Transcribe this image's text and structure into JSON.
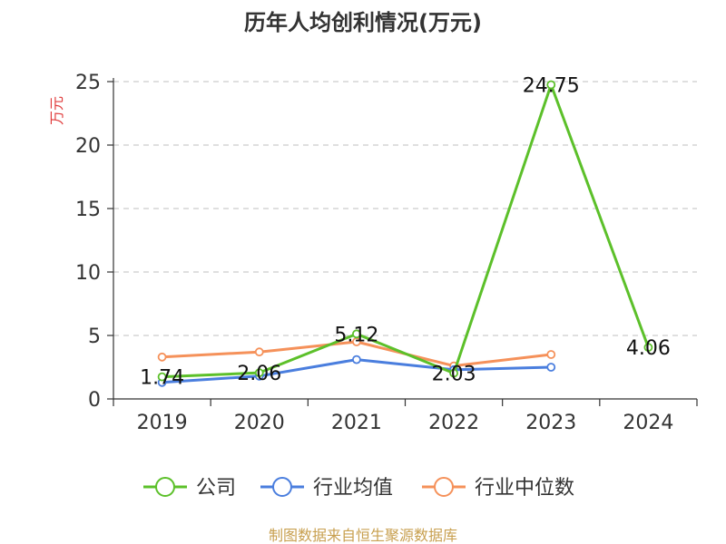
{
  "chart_data": {
    "type": "line",
    "title": "历年人均创利情况(万元)",
    "ylabel": "万元",
    "categories": [
      "2019",
      "2020",
      "2021",
      "2022",
      "2023",
      "2024"
    ],
    "ylim": [
      0,
      25
    ],
    "yticks": [
      0,
      5,
      10,
      15,
      20,
      25
    ],
    "grid": true,
    "legend_position": "bottom",
    "series": [
      {
        "name": "公司",
        "color": "#5cc02a",
        "values": [
          1.74,
          2.06,
          5.12,
          2.03,
          24.75,
          4.06
        ],
        "data_labels": [
          "1.74",
          "2.06",
          "5.12",
          "2.03",
          "24.75",
          "4.06"
        ]
      },
      {
        "name": "行业均值",
        "color": "#4a7ede",
        "values": [
          1.3,
          1.8,
          3.1,
          2.3,
          2.5,
          null
        ]
      },
      {
        "name": "行业中位数",
        "color": "#f5915a",
        "values": [
          3.3,
          3.7,
          4.5,
          2.6,
          3.5,
          null
        ]
      }
    ]
  },
  "source": "制图数据来自恒生聚源数据库"
}
